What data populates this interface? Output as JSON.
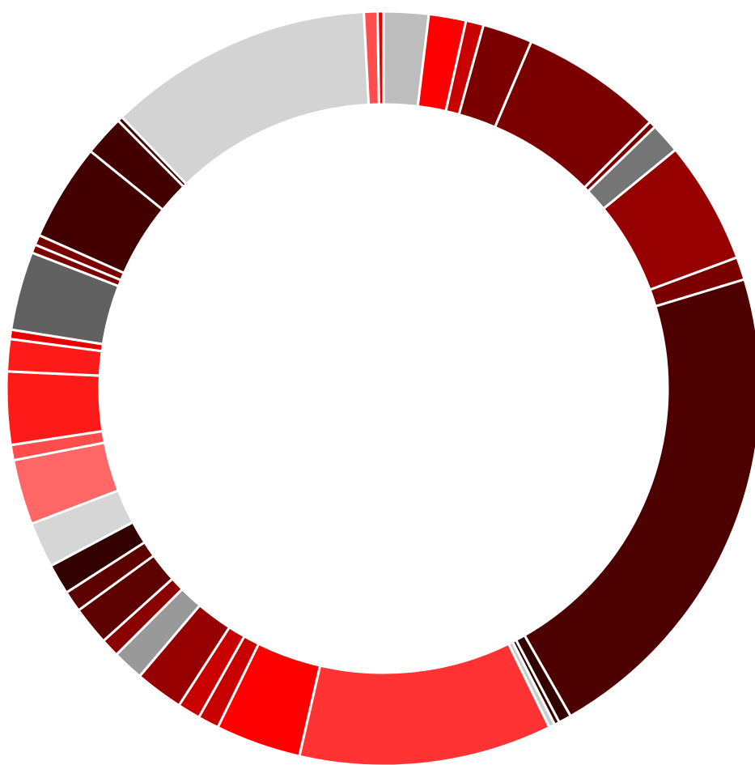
{
  "chart_data": {
    "type": "pie",
    "variant": "donut",
    "title": "",
    "legend": "none",
    "data_labels": "none",
    "start": "top",
    "direction": "clockwise",
    "slices": [
      {
        "value": 2.65,
        "color": "#bdbdbd"
      },
      {
        "value": 2.2,
        "color": "#ff0000"
      },
      {
        "value": 1.05,
        "color": "#c80000"
      },
      {
        "value": 2.95,
        "color": "#7a0000"
      },
      {
        "value": 8.4,
        "color": "#7a0000"
      },
      {
        "value": 0.4,
        "color": "#7a0000"
      },
      {
        "value": 1.8,
        "color": "#757575"
      },
      {
        "value": 7.25,
        "color": "#960000"
      },
      {
        "value": 1.35,
        "color": "#7a0000"
      },
      {
        "value": 29.55,
        "color": "#4d0000"
      },
      {
        "value": 0.75,
        "color": "#330000"
      },
      {
        "value": 0.3,
        "color": "#330000"
      },
      {
        "value": 0.35,
        "color": "#cccccc"
      },
      {
        "value": 14.95,
        "color": "#ff3333"
      },
      {
        "value": 5.05,
        "color": "#ff0000"
      },
      {
        "value": 1.25,
        "color": "#c80000"
      },
      {
        "value": 1.35,
        "color": "#c80000"
      },
      {
        "value": 2.85,
        "color": "#960000"
      },
      {
        "value": 1.85,
        "color": "#999999"
      },
      {
        "value": 1.1,
        "color": "#8a0000"
      },
      {
        "value": 2.3,
        "color": "#5c0000"
      },
      {
        "value": 1.25,
        "color": "#5c0000"
      },
      {
        "value": 1.8,
        "color": "#330000"
      },
      {
        "value": 2.7,
        "color": "#d6d6d6"
      },
      {
        "value": 3.85,
        "color": "#ff6666"
      },
      {
        "value": 0.9,
        "color": "#ff4d4d"
      },
      {
        "value": 4.3,
        "color": "#ff1a1a"
      },
      {
        "value": 1.9,
        "color": "#ff1a1a"
      },
      {
        "value": 0.55,
        "color": "#e60000"
      },
      {
        "value": 4.65,
        "color": "#616161"
      },
      {
        "value": 0.5,
        "color": "#7a0000"
      },
      {
        "value": 0.6,
        "color": "#7a0000"
      },
      {
        "value": 5.75,
        "color": "#420000"
      },
      {
        "value": 2.4,
        "color": "#420000"
      },
      {
        "value": 0.3,
        "color": "#420000"
      },
      {
        "value": 15.7,
        "color": "#d3d3d3"
      },
      {
        "value": 0.8,
        "color": "#ff4d4d"
      },
      {
        "value": 0.35,
        "color": "#e60000"
      }
    ]
  }
}
